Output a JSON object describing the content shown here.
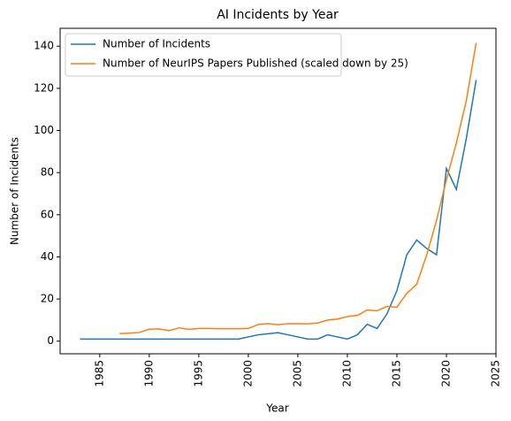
{
  "chart_data": {
    "type": "line",
    "title": "AI Incidents by Year",
    "x_label": "Year",
    "y_label": "Number of Incidents",
    "x": [
      1983,
      1984,
      1985,
      1986,
      1987,
      1988,
      1989,
      1990,
      1991,
      1992,
      1993,
      1994,
      1995,
      1996,
      1997,
      1998,
      1999,
      2000,
      2001,
      2002,
      2003,
      2004,
      2005,
      2006,
      2007,
      2008,
      2009,
      2010,
      2011,
      2012,
      2013,
      2014,
      2015,
      2016,
      2017,
      2018,
      2019,
      2020,
      2021,
      2022,
      2023
    ],
    "series": [
      {
        "name": "Number of Incidents",
        "color": "#1f77b4",
        "values": [
          1,
          1,
          1,
          1,
          1,
          1,
          1,
          1,
          1,
          1,
          1,
          1,
          1,
          1,
          1,
          1,
          1,
          2,
          3,
          3.5,
          4,
          3,
          2,
          1,
          1,
          3,
          2,
          1,
          3,
          8,
          6,
          13,
          24,
          41,
          48,
          44,
          41,
          82,
          72,
          96,
          124
        ]
      },
      {
        "name": "Number of NeurIPS Papers Published (scaled down by 25)",
        "color": "#ff7f0e",
        "values": [
          null,
          null,
          null,
          null,
          3.6,
          3.8,
          4.1,
          5.7,
          5.8,
          5.0,
          6.3,
          5.6,
          6.0,
          6.0,
          5.9,
          5.9,
          5.9,
          6.0,
          7.9,
          8.3,
          7.8,
          8.3,
          8.3,
          8.2,
          8.6,
          10,
          10.5,
          11.7,
          12.2,
          14.8,
          14.4,
          16.5,
          16.1,
          22.7,
          27,
          40.8,
          57.3,
          76.6,
          94,
          114,
          141.5
        ]
      }
    ],
    "xlim": [
      1981,
      2025
    ],
    "xticks": [
      1985,
      1990,
      1995,
      2000,
      2005,
      2010,
      2015,
      2020,
      2025
    ],
    "ylim": [
      -6,
      148.5
    ],
    "yticks": [
      0,
      20,
      40,
      60,
      80,
      100,
      120,
      140
    ],
    "legend": "upper left"
  }
}
